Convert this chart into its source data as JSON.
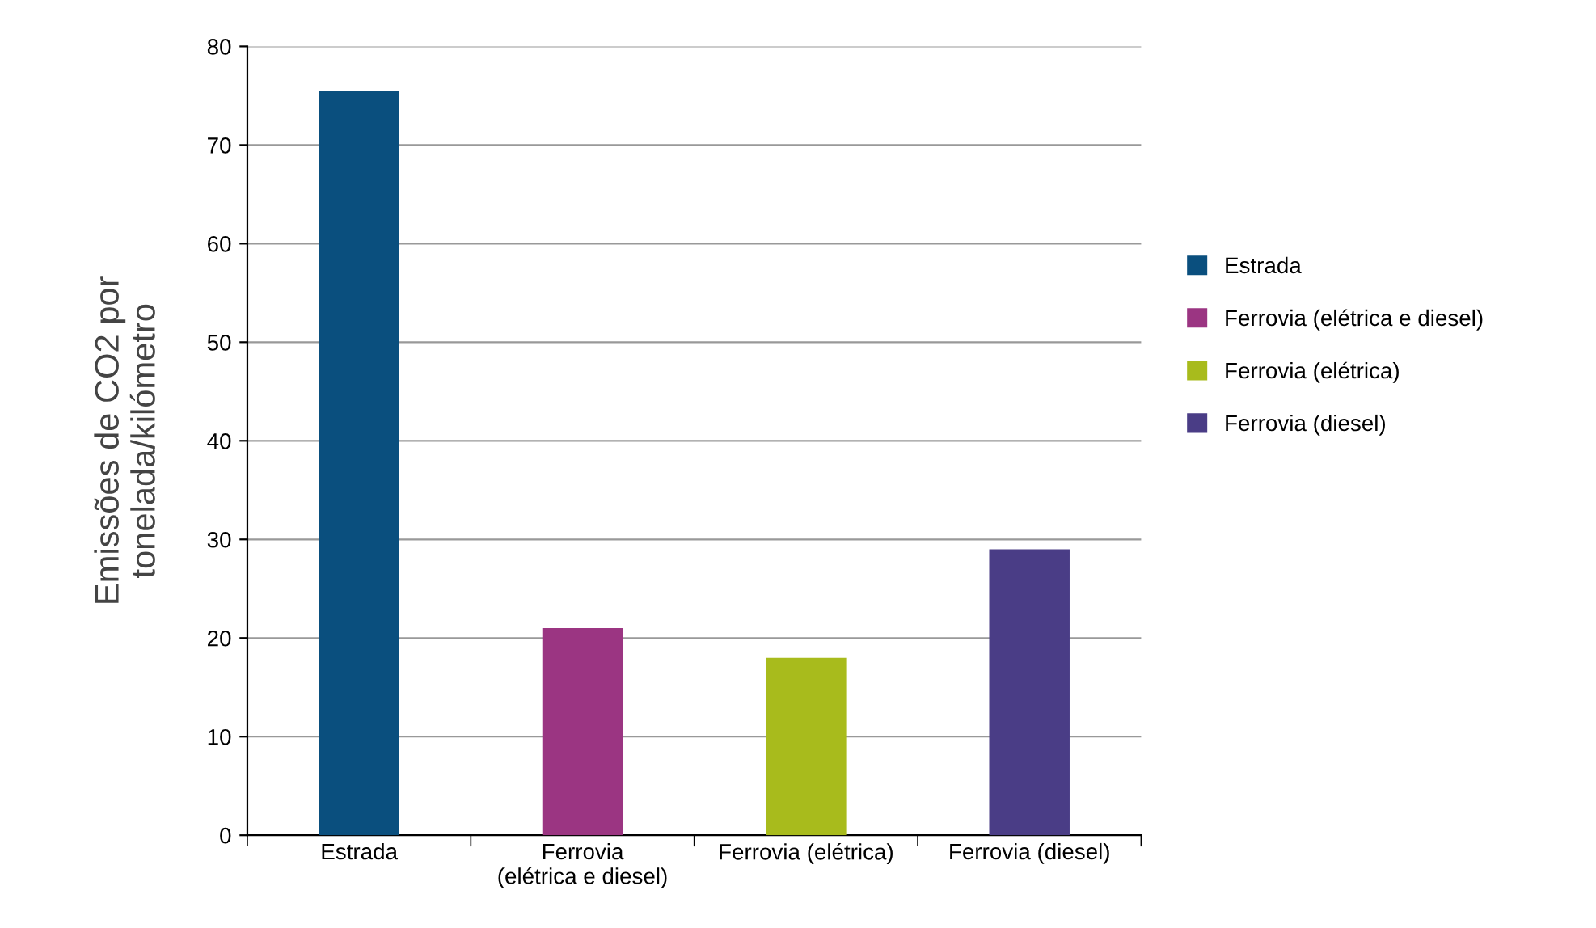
{
  "chart_data": {
    "type": "bar",
    "ylabel": "Emissões de CO2 por\ntonelada/kilómetro",
    "categories": [
      "Estrada",
      "Ferrovia\n(elétrica e diesel)",
      "Ferrovia (elétrica)",
      "Ferrovia (diesel)"
    ],
    "series": [
      {
        "name": "Estrada",
        "color": "#0a4f7e",
        "values": [
          75.5,
          null,
          null,
          null
        ]
      },
      {
        "name": "Ferrovia (elétrica e diesel)",
        "color": "#9b3582",
        "values": [
          null,
          21,
          null,
          null
        ]
      },
      {
        "name": "Ferrovia (elétrica)",
        "color": "#a8bb1c",
        "values": [
          null,
          null,
          18,
          null
        ]
      },
      {
        "name": "Ferrovia (diesel)",
        "color": "#4a3d86",
        "values": [
          null,
          null,
          null,
          29
        ]
      }
    ],
    "ylim": [
      0,
      80
    ],
    "yticks": [
      0,
      10,
      20,
      30,
      40,
      50,
      60,
      70,
      80
    ],
    "grid": "y",
    "legend": "right"
  }
}
